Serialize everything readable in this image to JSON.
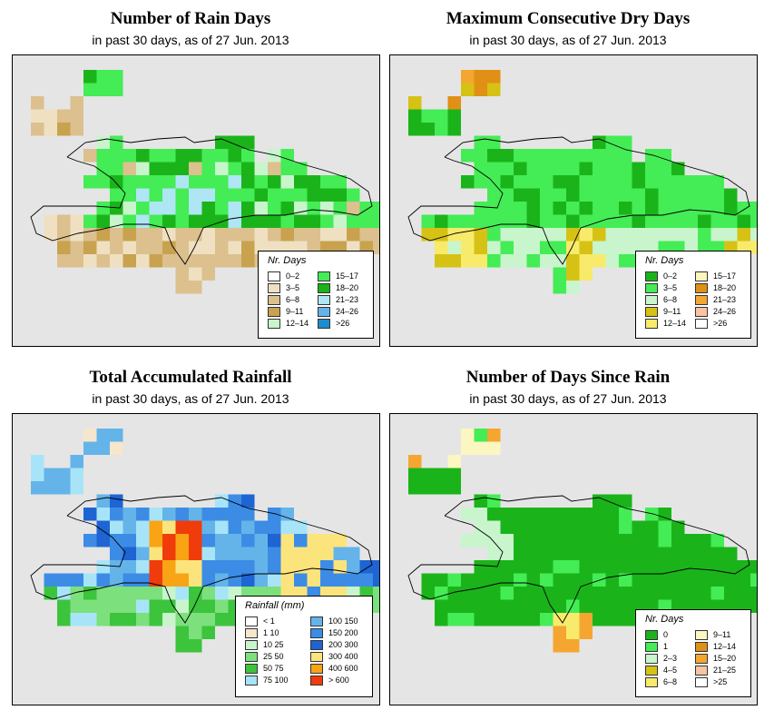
{
  "panels": [
    {
      "title": "Number of Rain Days",
      "subtitle": "in past 30 days, as of  27 Jun. 2013",
      "legend_title": "Nr. Days",
      "legend": [
        {
          "label": "0–2",
          "color": "#ffffff"
        },
        {
          "label": "3–5",
          "color": "#efe0c2"
        },
        {
          "label": "6–8",
          "color": "#dcc08e"
        },
        {
          "label": "9–11",
          "color": "#c8a24e"
        },
        {
          "label": "12–14",
          "color": "#c8f5cc"
        },
        {
          "label": "15–17",
          "color": "#44ec55"
        },
        {
          "label": "18–20",
          "color": "#1ab41a"
        },
        {
          "label": "21–23",
          "color": "#aee6f4"
        },
        {
          "label": "24–26",
          "color": "#64b4ea"
        },
        {
          "label": ">26",
          "color": "#1e8cd2"
        }
      ]
    },
    {
      "title": "Maximum Consecutive Dry Days",
      "subtitle": "in past 30 days, as of  27 Jun. 2013",
      "legend_title": "Nr. Days",
      "legend": [
        {
          "label": "0–2",
          "color": "#1ab41a"
        },
        {
          "label": "3–5",
          "color": "#44ec55"
        },
        {
          "label": "6–8",
          "color": "#c8f5cc"
        },
        {
          "label": "9–11",
          "color": "#d6c214"
        },
        {
          "label": "12–14",
          "color": "#f8ea6a"
        },
        {
          "label": "15–17",
          "color": "#fcf6c0"
        },
        {
          "label": "18–20",
          "color": "#e09014"
        },
        {
          "label": "21–23",
          "color": "#f4a630"
        },
        {
          "label": "24–26",
          "color": "#f8c4a4"
        },
        {
          "label": ">26",
          "color": "#ffffff"
        }
      ]
    },
    {
      "title": "Total Accumulated Rainfall",
      "subtitle": "in past 30 days, as of  27 Jun. 2013",
      "legend_title": "Rainfall (mm)",
      "legend": [
        {
          "label": "< 1",
          "color": "#ffffff"
        },
        {
          "label": "1    10",
          "color": "#f6e6cc"
        },
        {
          "label": "10    25",
          "color": "#c8f5cc"
        },
        {
          "label": "25    50",
          "color": "#7ce07c"
        },
        {
          "label": "50    75",
          "color": "#3cc43c"
        },
        {
          "label": "75   100",
          "color": "#a8e4f8"
        },
        {
          "label": "100   150",
          "color": "#64b4ea"
        },
        {
          "label": "150   200",
          "color": "#3c8ce6"
        },
        {
          "label": "200   300",
          "color": "#1e64d2"
        },
        {
          "label": "300   400",
          "color": "#fce47c"
        },
        {
          "label": "400   600",
          "color": "#f8a414"
        },
        {
          "label": "> 600",
          "color": "#f03c0a"
        }
      ]
    },
    {
      "title": "Number of Days Since Rain",
      "subtitle": "in past 30 days, as of  27 Jun. 2013",
      "legend_title": "Nr. Days",
      "legend": [
        {
          "label": "0",
          "color": "#1ab41a"
        },
        {
          "label": "1",
          "color": "#44ec55"
        },
        {
          "label": "2–3",
          "color": "#c8f5cc"
        },
        {
          "label": "4–5",
          "color": "#d6c214"
        },
        {
          "label": "6–8",
          "color": "#f8ea6a"
        },
        {
          "label": "9–11",
          "color": "#fcf6c0"
        },
        {
          "label": "12–14",
          "color": "#e09014"
        },
        {
          "label": "15–20",
          "color": "#f4a630"
        },
        {
          "label": "21–25",
          "color": "#f8c4a4"
        },
        {
          "label": ">25",
          "color": "#ffffff"
        }
      ]
    }
  ]
}
